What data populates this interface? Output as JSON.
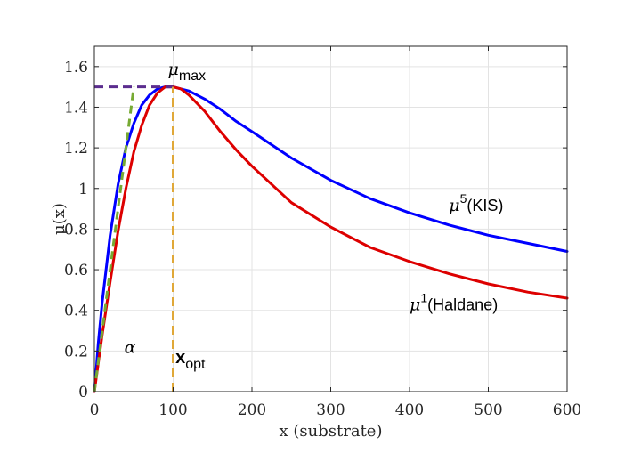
{
  "chart_data": {
    "type": "line",
    "xlabel": "x (substrate)",
    "ylabel": "μ(x)",
    "xlim": [
      0,
      600
    ],
    "ylim": [
      0,
      1.7
    ],
    "xticks": [
      0,
      100,
      200,
      300,
      400,
      500,
      600
    ],
    "yticks": [
      0,
      0.2,
      0.4,
      0.6,
      0.8,
      1,
      1.2,
      1.4,
      1.6
    ],
    "grid": true,
    "series": [
      {
        "name": "μ5(KIS)",
        "color": "#0000ff",
        "x": [
          0,
          2,
          5,
          10,
          20,
          30,
          40,
          50,
          60,
          70,
          80,
          90,
          100,
          110,
          120,
          140,
          160,
          180,
          200,
          250,
          300,
          350,
          400,
          450,
          500,
          550,
          600
        ],
        "y": [
          0,
          0.09,
          0.24,
          0.44,
          0.77,
          1.02,
          1.2,
          1.32,
          1.41,
          1.46,
          1.49,
          1.5,
          1.5,
          1.49,
          1.48,
          1.44,
          1.39,
          1.33,
          1.28,
          1.15,
          1.04,
          0.95,
          0.88,
          0.82,
          0.77,
          0.73,
          0.69
        ]
      },
      {
        "name": "μ1(Haldane)",
        "color": "#dd0000",
        "x": [
          0,
          5,
          10,
          20,
          30,
          40,
          50,
          60,
          70,
          80,
          90,
          100,
          110,
          120,
          140,
          160,
          180,
          200,
          250,
          300,
          350,
          400,
          450,
          500,
          550,
          600
        ],
        "y": [
          0,
          0.14,
          0.28,
          0.54,
          0.79,
          1.0,
          1.18,
          1.31,
          1.41,
          1.47,
          1.5,
          1.5,
          1.49,
          1.46,
          1.38,
          1.28,
          1.19,
          1.11,
          0.93,
          0.81,
          0.71,
          0.64,
          0.58,
          0.53,
          0.49,
          0.46
        ]
      },
      {
        "name": "",
        "color": "#77aa33",
        "style": "dashed",
        "x": [
          0,
          50
        ],
        "y": [
          0,
          1.5
        ]
      }
    ],
    "reference_lines": [
      {
        "orientation": "horizontal",
        "y": 1.5,
        "x_range": [
          0,
          100
        ],
        "color": "#5b2d8e",
        "style": "dashed"
      },
      {
        "orientation": "vertical",
        "x": 100,
        "y_range": [
          0,
          1.5
        ],
        "color": "#e0a838",
        "style": "dashed"
      }
    ],
    "annotations": {
      "mu_max": {
        "mu": "μ",
        "sub": "max",
        "x": 100,
        "y": 1.56
      },
      "kis": {
        "mu": "μ",
        "sup": "5",
        "text": "(KIS)",
        "x": 450,
        "y": 0.89
      },
      "haldane": {
        "mu": "μ",
        "sup": "1",
        "text": "(Haldane)",
        "x": 400,
        "y": 0.4
      },
      "alpha": {
        "text": "α",
        "x": 38,
        "y": 0.19
      },
      "x_opt": {
        "main": "x",
        "sub": "opt",
        "x": 112,
        "y": 0.14
      }
    }
  }
}
